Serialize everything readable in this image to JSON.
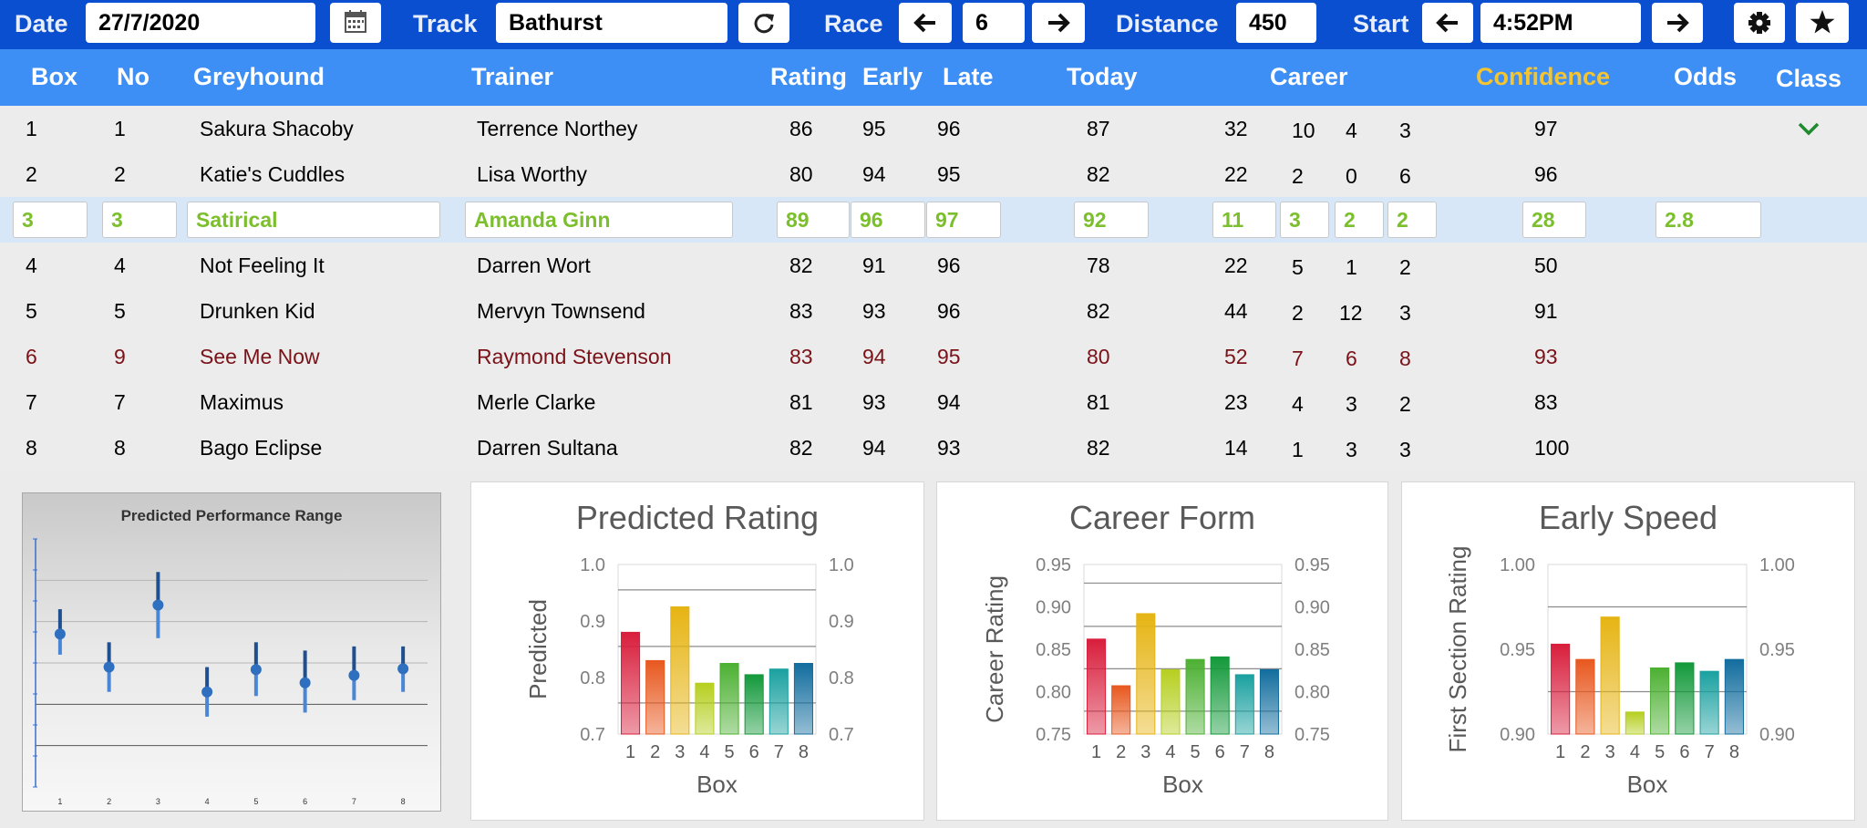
{
  "toolbar": {
    "date_label": "Date",
    "date_value": "27/7/2020",
    "track_label": "Track",
    "track_value": "Bathurst",
    "race_label": "Race",
    "race_value": "6",
    "distance_label": "Distance",
    "distance_value": "450",
    "start_label": "Start",
    "start_value": "4:52PM",
    "icons": [
      "calendar-icon",
      "refresh-icon",
      "arrow-left-icon",
      "arrow-right-icon",
      "gear-icon",
      "star-icon"
    ]
  },
  "table": {
    "headers": {
      "box": "Box",
      "no": "No",
      "greyhound": "Greyhound",
      "trainer": "Trainer",
      "rating": "Rating",
      "early": "Early",
      "late": "Late",
      "today": "Today",
      "career": "Career",
      "confidence": "Confidence",
      "odds": "Odds",
      "class": "Class"
    },
    "rows": [
      {
        "box": "1",
        "no": "1",
        "greyhound": "Sakura Shacoby",
        "trainer": "Terrence Northey",
        "rating": "86",
        "early": "95",
        "late": "96",
        "today": "87",
        "career": [
          "32",
          "10",
          "4",
          "3"
        ],
        "confidence": "97",
        "odds": "",
        "class_check": true
      },
      {
        "box": "2",
        "no": "2",
        "greyhound": "Katie's Cuddles",
        "trainer": "Lisa Worthy",
        "rating": "80",
        "early": "94",
        "late": "95",
        "today": "82",
        "career": [
          "22",
          "2",
          "0",
          "6"
        ],
        "confidence": "96",
        "odds": ""
      },
      {
        "box": "3",
        "no": "3",
        "greyhound": "Satirical",
        "trainer": "Amanda Ginn",
        "rating": "89",
        "early": "96",
        "late": "97",
        "today": "92",
        "career": [
          "11",
          "3",
          "2",
          "2"
        ],
        "confidence": "28",
        "odds": "2.8",
        "selected": true
      },
      {
        "box": "4",
        "no": "4",
        "greyhound": "Not Feeling It",
        "trainer": "Darren Wort",
        "rating": "82",
        "early": "91",
        "late": "96",
        "today": "78",
        "career": [
          "22",
          "5",
          "1",
          "2"
        ],
        "confidence": "50",
        "odds": ""
      },
      {
        "box": "5",
        "no": "5",
        "greyhound": "Drunken Kid",
        "trainer": "Mervyn Townsend",
        "rating": "83",
        "early": "93",
        "late": "96",
        "today": "82",
        "career": [
          "44",
          "2",
          "12",
          "3"
        ],
        "confidence": "91",
        "odds": ""
      },
      {
        "box": "6",
        "no": "9",
        "greyhound": "See Me Now",
        "trainer": "Raymond Stevenson",
        "rating": "83",
        "early": "94",
        "late": "95",
        "today": "80",
        "career": [
          "52",
          "7",
          "6",
          "8"
        ],
        "confidence": "93",
        "odds": "",
        "highlight": "red"
      },
      {
        "box": "7",
        "no": "7",
        "greyhound": "Maximus",
        "trainer": "Merle Clarke",
        "rating": "81",
        "early": "93",
        "late": "94",
        "today": "81",
        "career": [
          "23",
          "4",
          "3",
          "2"
        ],
        "confidence": "83",
        "odds": ""
      },
      {
        "box": "8",
        "no": "8",
        "greyhound": "Bago Eclipse",
        "trainer": "Darren Sultana",
        "rating": "82",
        "early": "94",
        "late": "93",
        "today": "82",
        "career": [
          "14",
          "1",
          "3",
          "3"
        ],
        "confidence": "100",
        "odds": ""
      }
    ]
  },
  "colors": {
    "toolbar": "#0a4fcf",
    "header": "#3d8ef5",
    "confidence_header": "#f5c431",
    "selected_text": "#7bbf2c",
    "highlight_red": "#7a1218",
    "selected_row": "#d7e7f8",
    "check": "#1e8a2e",
    "bars": [
      "#d81e3c",
      "#e8581f",
      "#e6b413",
      "#b6cf1f",
      "#4cb032",
      "#13993a",
      "#1aa1a0",
      "#126d9e"
    ]
  },
  "chart_data": [
    {
      "type": "scatter",
      "title": "Predicted Performance Range",
      "categories": [
        "1",
        "2",
        "3",
        "4",
        "5",
        "6",
        "7",
        "8"
      ],
      "values": [
        0.885,
        0.845,
        0.92,
        0.815,
        0.842,
        0.826,
        0.835,
        0.843
      ],
      "low": [
        0.86,
        0.815,
        0.88,
        0.785,
        0.81,
        0.79,
        0.805,
        0.815
      ],
      "high": [
        0.915,
        0.875,
        0.96,
        0.845,
        0.875,
        0.865,
        0.87,
        0.87
      ],
      "ylim": [
        0.7,
        1.0
      ],
      "grid": true
    },
    {
      "type": "bar",
      "title": "Predicted Rating",
      "xlabel": "Box",
      "ylabel": "Predicted",
      "categories": [
        "1",
        "2",
        "3",
        "4",
        "5",
        "6",
        "7",
        "8"
      ],
      "values": [
        0.88,
        0.83,
        0.925,
        0.79,
        0.825,
        0.805,
        0.815,
        0.825
      ],
      "ylim": [
        0.7,
        1.0
      ],
      "yticks": [
        "0.7",
        "0.8",
        "0.9",
        "1.0"
      ],
      "reference_lines": [
        0.955,
        0.855,
        0.755
      ],
      "secondary_axis": true
    },
    {
      "type": "bar",
      "title": "Career Form",
      "xlabel": "Box",
      "ylabel": "Career Rating",
      "categories": [
        "1",
        "2",
        "3",
        "4",
        "5",
        "6",
        "7",
        "8"
      ],
      "values": [
        0.862,
        0.807,
        0.892,
        0.826,
        0.838,
        0.841,
        0.82,
        0.826
      ],
      "ylim": [
        0.75,
        0.95
      ],
      "yticks": [
        "0.75",
        "0.80",
        "0.85",
        "0.90",
        "0.95"
      ],
      "reference_lines": [
        0.928,
        0.877,
        0.827,
        0.777
      ],
      "secondary_axis": true
    },
    {
      "type": "bar",
      "title": "Early Speed",
      "xlabel": "Box",
      "ylabel": "First Section Rating",
      "categories": [
        "1",
        "2",
        "3",
        "4",
        "5",
        "6",
        "7",
        "8"
      ],
      "values": [
        0.953,
        0.944,
        0.969,
        0.913,
        0.939,
        0.942,
        0.937,
        0.944
      ],
      "ylim": [
        0.9,
        1.0
      ],
      "yticks": [
        "0.90",
        "0.95",
        "1.00"
      ],
      "reference_lines": [
        0.975,
        0.925
      ],
      "secondary_axis": true
    }
  ]
}
